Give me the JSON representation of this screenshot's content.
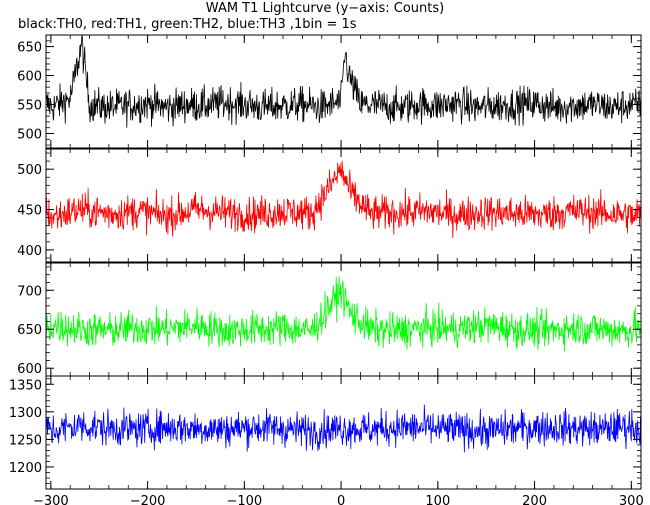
{
  "header": {
    "title": "WAM T1 Lightcurve (y−axis: Counts)",
    "subtitle": "black:TH0, red:TH1, green:TH2, blue:TH3 ,1bin = 1s"
  },
  "chart_data": {
    "type": "line",
    "title": "WAM T1 Lightcurve (y−axis: Counts)",
    "subtitle": "black:TH0, red:TH1, green:TH2, blue:TH3 ,1bin = 1s",
    "xlabel": "",
    "ylabel": "Counts",
    "xlim": [
      -305,
      310
    ],
    "x_ticks": [
      -300,
      -200,
      -100,
      0,
      100,
      200,
      300
    ],
    "grid": false,
    "bin_seconds": 1,
    "panels": [
      {
        "name": "TH0",
        "color": "#000000",
        "ylim": [
          475,
          670
        ],
        "y_ticks": [
          500,
          550,
          600,
          650
        ],
        "mean": 550,
        "x": [
          -300,
          -280,
          -268,
          -260,
          -240,
          -220,
          -200,
          -180,
          -160,
          -140,
          -120,
          -100,
          -80,
          -60,
          -40,
          -20,
          0,
          4,
          8,
          20,
          40,
          60,
          80,
          100,
          120,
          140,
          160,
          180,
          200,
          220,
          240,
          260,
          280,
          300,
          305
        ],
        "values": [
          545,
          560,
          655,
          550,
          545,
          548,
          552,
          545,
          550,
          548,
          553,
          550,
          545,
          548,
          550,
          545,
          555,
          640,
          600,
          550,
          548,
          545,
          550,
          548,
          552,
          545,
          548,
          550,
          552,
          545,
          548,
          550,
          545,
          550,
          548
        ]
      },
      {
        "name": "TH1",
        "color": "#ff0000",
        "ylim": [
          385,
          525
        ],
        "y_ticks": [
          400,
          450,
          500
        ],
        "mean": 445,
        "x": [
          -300,
          -270,
          -240,
          -210,
          -180,
          -150,
          -120,
          -90,
          -60,
          -30,
          0,
          10,
          30,
          60,
          90,
          120,
          150,
          180,
          210,
          240,
          270,
          300,
          305
        ],
        "values": [
          440,
          450,
          445,
          448,
          442,
          450,
          446,
          444,
          448,
          445,
          500,
          470,
          445,
          446,
          448,
          443,
          447,
          445,
          444,
          448,
          446,
          443,
          440
        ]
      },
      {
        "name": "TH2",
        "color": "#00ff00",
        "ylim": [
          590,
          735
        ],
        "y_ticks": [
          600,
          650,
          700
        ],
        "mean": 650,
        "x": [
          -300,
          -270,
          -240,
          -210,
          -180,
          -150,
          -120,
          -90,
          -60,
          -30,
          0,
          10,
          30,
          60,
          90,
          120,
          150,
          180,
          210,
          240,
          270,
          300,
          305
        ],
        "values": [
          655,
          650,
          648,
          652,
          650,
          655,
          648,
          650,
          652,
          648,
          700,
          670,
          650,
          648,
          652,
          650,
          655,
          650,
          648,
          652,
          650,
          648,
          655
        ]
      },
      {
        "name": "TH3",
        "color": "#0000ff",
        "ylim": [
          1160,
          1365
        ],
        "y_ticks": [
          1200,
          1250,
          1300,
          1350
        ],
        "mean": 1270,
        "x": [
          -300,
          -270,
          -240,
          -210,
          -180,
          -150,
          -120,
          -90,
          -60,
          -30,
          0,
          30,
          60,
          90,
          120,
          150,
          180,
          210,
          240,
          270,
          300,
          305
        ],
        "values": [
          1265,
          1275,
          1270,
          1268,
          1272,
          1270,
          1268,
          1272,
          1270,
          1265,
          1270,
          1268,
          1272,
          1270,
          1268,
          1265,
          1270,
          1272,
          1270,
          1268,
          1275,
          1270
        ]
      }
    ]
  }
}
